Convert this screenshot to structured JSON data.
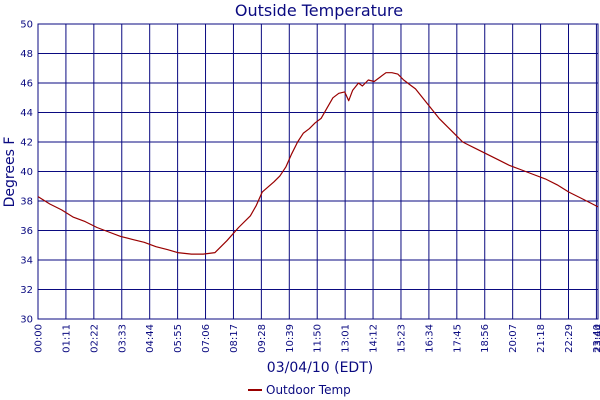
{
  "chart_data": {
    "type": "line",
    "title": "Outside Temperature",
    "xlabel": "03/04/10 (EDT)",
    "ylabel": "Degrees F",
    "ylim": [
      30,
      50
    ],
    "yticks": [
      "30",
      "32",
      "34",
      "36",
      "38",
      "40",
      "42",
      "44",
      "46",
      "48",
      "50"
    ],
    "xlim_minutes": [
      0,
      1424
    ],
    "xticks": [
      "00:00",
      "01:11",
      "02:22",
      "03:33",
      "04:44",
      "05:55",
      "07:06",
      "08:17",
      "09:28",
      "10:39",
      "11:50",
      "13:01",
      "14:12",
      "15:23",
      "16:34",
      "17:45",
      "18:56",
      "20:07",
      "21:18",
      "22:29",
      "23:40",
      "23:44"
    ],
    "grid": true,
    "legend_position": "bottom-center",
    "series": [
      {
        "name": "Outdoor Temp",
        "color": "#990000",
        "x": [
          "00:00",
          "00:30",
          "01:00",
          "01:30",
          "02:00",
          "02:30",
          "03:00",
          "03:30",
          "04:00",
          "04:30",
          "05:00",
          "05:30",
          "05:55",
          "06:30",
          "07:00",
          "07:30",
          "08:00",
          "08:30",
          "09:00",
          "09:15",
          "09:30",
          "10:00",
          "10:15",
          "10:30",
          "10:45",
          "11:00",
          "11:15",
          "11:30",
          "11:45",
          "12:00",
          "12:15",
          "12:30",
          "12:45",
          "13:00",
          "13:10",
          "13:20",
          "13:35",
          "13:45",
          "14:00",
          "14:15",
          "14:30",
          "14:45",
          "15:00",
          "15:15",
          "15:30",
          "15:45",
          "16:00",
          "16:15",
          "16:30",
          "16:45",
          "17:00",
          "17:15",
          "17:30",
          "17:45",
          "18:00",
          "18:15",
          "18:30",
          "19:00",
          "19:30",
          "20:00",
          "20:30",
          "21:00",
          "21:30",
          "22:00",
          "22:30",
          "23:00",
          "23:30",
          "23:44"
        ],
        "y": [
          38.3,
          37.8,
          37.4,
          36.9,
          36.6,
          36.2,
          35.9,
          35.6,
          35.4,
          35.2,
          34.9,
          34.7,
          34.5,
          34.4,
          34.4,
          34.5,
          35.3,
          36.2,
          37.0,
          37.7,
          38.6,
          39.3,
          39.7,
          40.3,
          41.2,
          42.0,
          42.6,
          42.9,
          43.3,
          43.6,
          44.3,
          45.0,
          45.3,
          45.4,
          44.8,
          45.5,
          46.0,
          45.8,
          46.2,
          46.1,
          46.4,
          46.7,
          46.7,
          46.6,
          46.2,
          45.9,
          45.6,
          45.1,
          44.6,
          44.1,
          43.6,
          43.2,
          42.8,
          42.4,
          42.0,
          41.8,
          41.6,
          41.2,
          40.8,
          40.4,
          40.1,
          39.8,
          39.5,
          39.1,
          38.6,
          38.2,
          37.8,
          37.6
        ]
      }
    ]
  }
}
